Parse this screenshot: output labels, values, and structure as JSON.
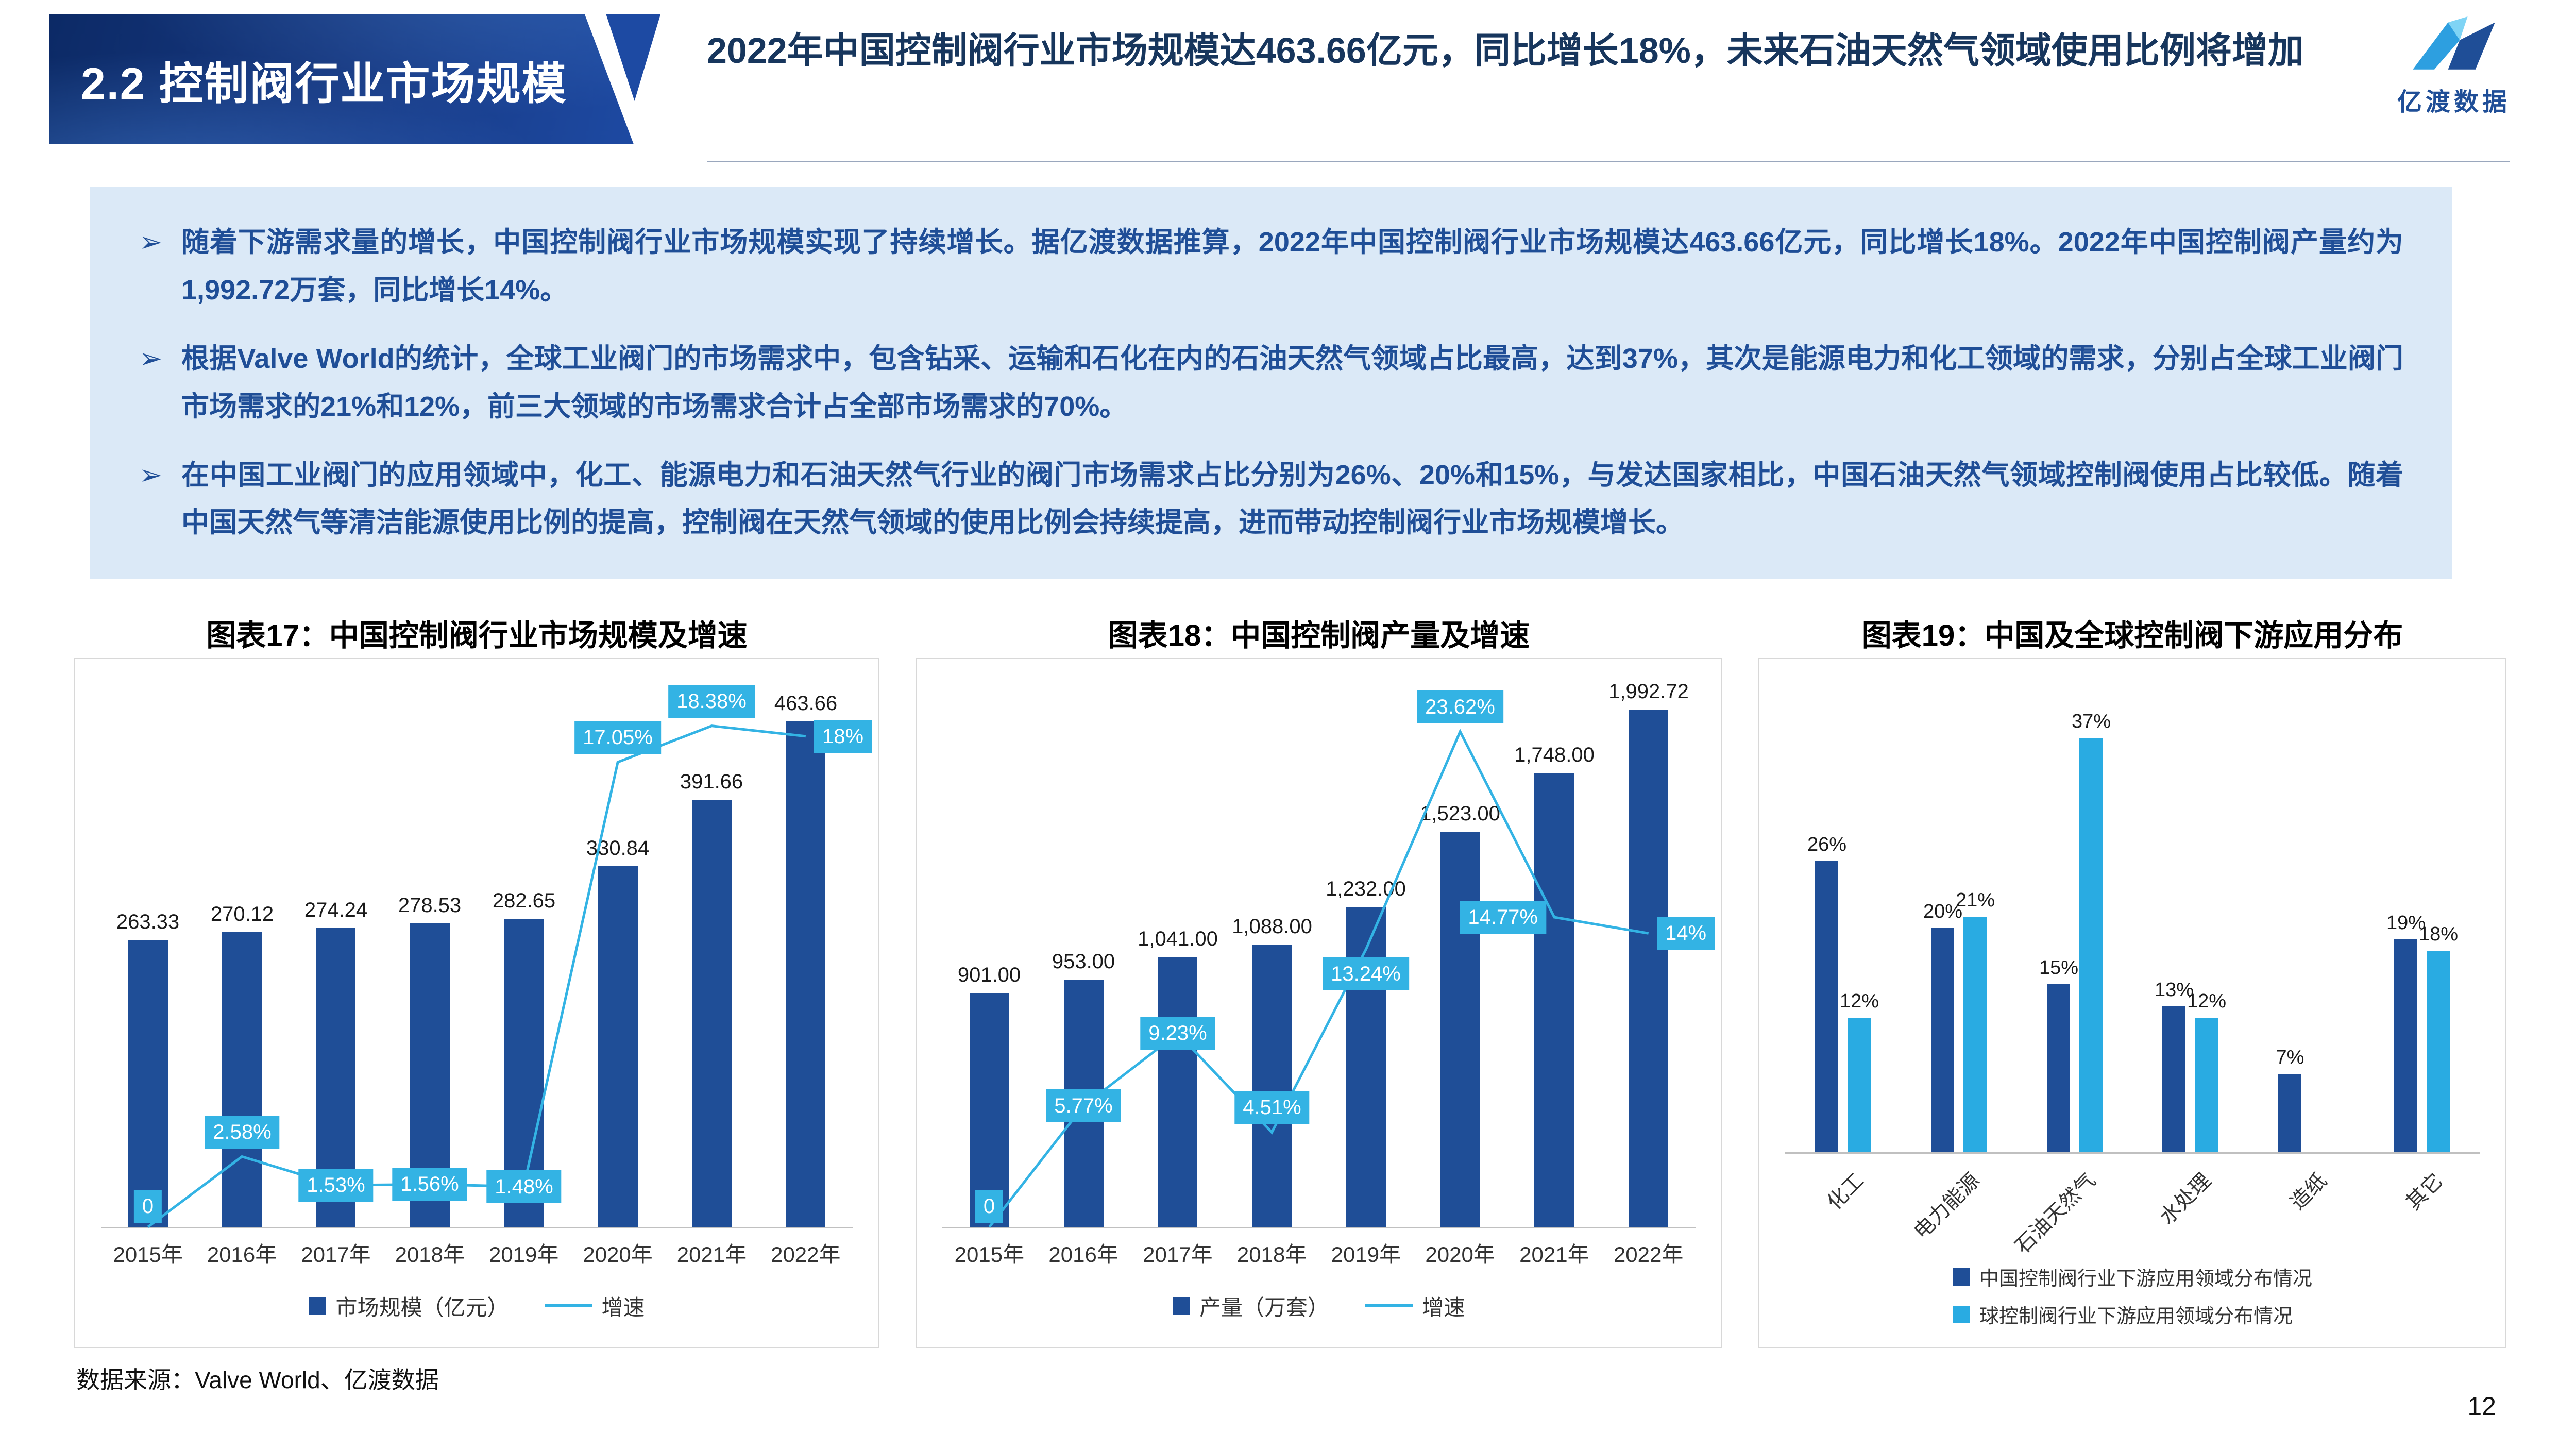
{
  "header": {
    "section_title": "2.2 控制阀行业市场规模",
    "headline": "2022年中国控制阀行业市场规模达463.66亿元，同比增长18%，未来石油天然气领域使用比例将增加",
    "logo_text": "亿渡数据"
  },
  "summary": {
    "marker": "➢",
    "bullets": [
      "随着下游需求量的增长，中国控制阀行业市场规模实现了持续增长。据亿渡数据推算，2022年中国控制阀行业市场规模达463.66亿元，同比增长18%。2022年中国控制阀产量约为1,992.72万套，同比增长14%。",
      "根据Valve  World的统计，全球工业阀门的市场需求中，包含钻采、运输和石化在内的石油天然气领域占比最高，达到37%，其次是能源电力和化工领域的需求，分别占全球工业阀门市场需求的21%和12%，前三大领域的市场需求合计占全部市场需求的70%。",
      "在中国工业阀门的应用领域中，化工、能源电力和石油天然气行业的阀门市场需求占比分别为26%、20%和15%，与发达国家相比，中国石油天然气领域控制阀使用占比较低。随着中国天然气等清洁能源使用比例的提高，控制阀在天然气领域的使用比例会持续提高，进而带动控制阀行业市场规模增长。"
    ]
  },
  "colors": {
    "primary_dark_blue": "#1F4E97",
    "accent_cyan": "#33B3E4",
    "global_bar_cyan": "#29ABE2",
    "summary_bg": "#DBE9F7",
    "headline_navy": "#17365D"
  },
  "chart_data": [
    {
      "type": "bar",
      "subtype": "bar-line",
      "title": "图表17：中国控制阀行业市场规模及增速",
      "categories": [
        "2015年",
        "2016年",
        "2017年",
        "2018年",
        "2019年",
        "2020年",
        "2021年",
        "2022年"
      ],
      "series": [
        {
          "name": "市场规模（亿元）",
          "type": "bar",
          "values": [
            263.33,
            270.12,
            274.24,
            278.53,
            282.65,
            330.84,
            391.66,
            463.66
          ],
          "labels": [
            "263.33",
            "270.12",
            "274.24",
            "278.53",
            "282.65",
            "330.84",
            "391.66",
            "463.66"
          ]
        },
        {
          "name": "增速",
          "type": "line",
          "values": [
            0,
            2.58,
            1.53,
            1.56,
            1.48,
            17.05,
            18.38,
            18
          ],
          "labels": [
            "0",
            "2.58%",
            "1.53%",
            "1.56%",
            "1.48%",
            "17.05%",
            "18.38%",
            "18%"
          ]
        }
      ],
      "ylim": [
        0,
        500
      ],
      "y2lim": [
        0,
        20
      ],
      "label_sides": [
        "base",
        "above",
        "on",
        "on",
        "on",
        "above",
        "above",
        "right"
      ],
      "grid": false,
      "legend_position": "bottom"
    },
    {
      "type": "bar",
      "subtype": "bar-line",
      "title": "图表18：中国控制阀产量及增速",
      "categories": [
        "2015年",
        "2016年",
        "2017年",
        "2018年",
        "2019年",
        "2020年",
        "2021年",
        "2022年"
      ],
      "series": [
        {
          "name": "产量（万套）",
          "type": "bar",
          "values": [
            901,
            953,
            1041,
            1088,
            1232,
            1523,
            1748,
            1992.72
          ],
          "labels": [
            "901.00",
            "953.00",
            "1,041.00",
            "1,088.00",
            "1,232.00",
            "1,523.00",
            "1,748.00",
            "1,992.72"
          ]
        },
        {
          "name": "增速",
          "type": "line",
          "values": [
            0,
            5.77,
            9.23,
            4.51,
            13.24,
            23.62,
            14.77,
            14
          ],
          "labels": [
            "0",
            "5.77%",
            "9.23%",
            "4.51%",
            "13.24%",
            "23.62%",
            "14.77%",
            "14%"
          ]
        }
      ],
      "ylim": [
        0,
        2100
      ],
      "y2lim": [
        0,
        26
      ],
      "label_sides": [
        "base",
        "on",
        "on",
        "above",
        "below",
        "above",
        "left",
        "right"
      ],
      "grid": false,
      "legend_position": "bottom"
    },
    {
      "type": "bar",
      "subtype": "grouped",
      "title": "图表19：中国及全球控制阀下游应用分布",
      "categories": [
        "化工",
        "电力能源",
        "石油天然气",
        "水处理",
        "造纸",
        "其它"
      ],
      "series": [
        {
          "name": "中国控制阀行业下游应用领域分布情况",
          "values": [
            26,
            20,
            15,
            13,
            7,
            19
          ],
          "labels": [
            "26%",
            "20%",
            "15%",
            "13%",
            "7%",
            "19%"
          ]
        },
        {
          "name": "球控制阀行业下游应用领域分布情况",
          "values": [
            12,
            21,
            37,
            12,
            null,
            18
          ],
          "labels": [
            "12%",
            "21%",
            "37%",
            "12%",
            null,
            "18%"
          ]
        }
      ],
      "ylim": [
        0,
        42
      ],
      "grid": false,
      "legend_position": "bottom"
    }
  ],
  "footer": {
    "source": "数据来源：Valve World、亿渡数据",
    "page": "12"
  }
}
